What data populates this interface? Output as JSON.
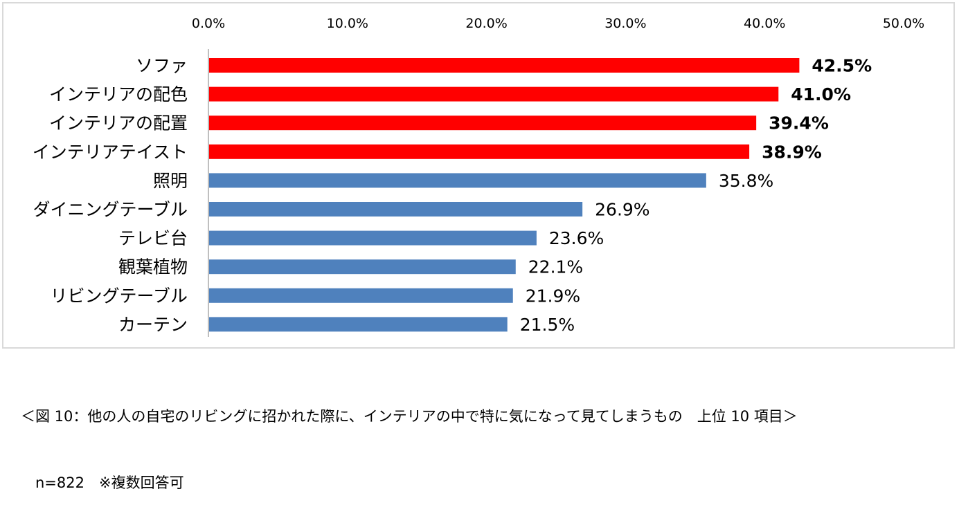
{
  "chart_data": {
    "type": "bar",
    "orientation": "horizontal",
    "categories": [
      "ソファ",
      "インテリアの配色",
      "インテリアの配置",
      "インテリアテイスト",
      "照明",
      "ダイニングテーブル",
      "テレビ台",
      "観葉植物",
      "リビングテーブル",
      "カーテン"
    ],
    "values": [
      42.5,
      41.0,
      39.4,
      38.9,
      35.8,
      26.9,
      23.6,
      22.1,
      21.9,
      21.5
    ],
    "value_labels": [
      "42.5%",
      "41.0%",
      "39.4%",
      "38.9%",
      "35.8%",
      "26.9%",
      "23.6%",
      "22.1%",
      "21.9%",
      "21.5%"
    ],
    "highlighted": [
      true,
      true,
      true,
      true,
      false,
      false,
      false,
      false,
      false,
      false
    ],
    "x_ticks": [
      0,
      10,
      20,
      30,
      40,
      50
    ],
    "x_tick_labels": [
      "0.0%",
      "10.0%",
      "20.0%",
      "30.0%",
      "40.0%",
      "50.0%"
    ],
    "xlim": [
      0,
      50
    ],
    "x_axis_position": "top",
    "grid": false,
    "title": "",
    "xlabel": "",
    "ylabel": "",
    "colors": {
      "highlight": "#ff0000",
      "normal": "#4f81bd",
      "axis": "#bfbfbf",
      "frame": "#d9d9d9"
    }
  },
  "caption": {
    "line1": "＜図 10：他の人の自宅のリビングに招かれた際に、インテリアの中で特に気になって見てしまうもの　上位 10 項目＞",
    "line2": "　n=822　※複数回答可"
  }
}
